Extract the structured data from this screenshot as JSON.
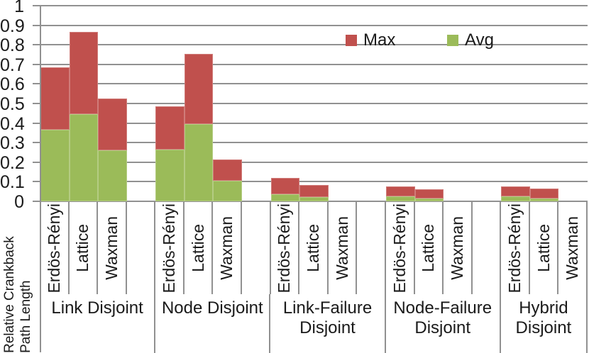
{
  "chart_data": {
    "type": "bar",
    "stacked": true,
    "orientation": "vertical",
    "ylabel": "Relative Crankback Path Length",
    "ylabel_lines": [
      "Relative Crankback",
      "Path Length"
    ],
    "ylim": [
      0,
      1
    ],
    "ytick_labels": [
      "0",
      "0.1",
      "0.2",
      "0.3",
      "0.4",
      "0.5",
      "0.6",
      "0.7",
      "0.8",
      "0.9",
      "1"
    ],
    "gridlines": "horizontal",
    "legend_position": "inside-top-right",
    "series": [
      {
        "name": "Max",
        "color": "#C0504D"
      },
      {
        "name": "Avg",
        "color": "#9BBB59"
      }
    ],
    "categories_per_group": [
      "Erdös-Rényi",
      "Lattice",
      "Waxman"
    ],
    "groups": [
      {
        "label_lines": [
          "Link Disjoint"
        ],
        "bars": [
          {
            "topology": "Erdös-Rényi",
            "avg": 0.365,
            "max": 0.685
          },
          {
            "topology": "Lattice",
            "avg": 0.445,
            "max": 0.865
          },
          {
            "topology": "Waxman",
            "avg": 0.26,
            "max": 0.525
          }
        ]
      },
      {
        "label_lines": [
          "Node Disjoint"
        ],
        "bars": [
          {
            "topology": "Erdös-Rényi",
            "avg": 0.265,
            "max": 0.485
          },
          {
            "topology": "Lattice",
            "avg": 0.395,
            "max": 0.755
          },
          {
            "topology": "Waxman",
            "avg": 0.105,
            "max": 0.215
          }
        ]
      },
      {
        "label_lines": [
          "Link-Failure",
          "Disjoint"
        ],
        "bars": [
          {
            "topology": "Erdös-Rényi",
            "avg": 0.035,
            "max": 0.12
          },
          {
            "topology": "Lattice",
            "avg": 0.02,
            "max": 0.085
          },
          {
            "topology": "Waxman",
            "avg": 0,
            "max": 0
          }
        ]
      },
      {
        "label_lines": [
          "Node-Failure",
          "Disjoint"
        ],
        "bars": [
          {
            "topology": "Erdös-Rényi",
            "avg": 0.025,
            "max": 0.075
          },
          {
            "topology": "Lattice",
            "avg": 0.015,
            "max": 0.06
          },
          {
            "topology": "Waxman",
            "avg": 0,
            "max": 0
          }
        ]
      },
      {
        "label_lines": [
          "Hybrid",
          "Disjoint"
        ],
        "bars": [
          {
            "topology": "Erdös-Rényi",
            "avg": 0.025,
            "max": 0.075
          },
          {
            "topology": "Lattice",
            "avg": 0.015,
            "max": 0.065
          },
          {
            "topology": "Waxman",
            "avg": 0,
            "max": 0
          }
        ]
      }
    ]
  },
  "colors": {
    "max": "#C0504D",
    "avg": "#9BBB59",
    "gridline": "#919191",
    "text": "#1a1a1a",
    "background": "#FFFFFF"
  }
}
